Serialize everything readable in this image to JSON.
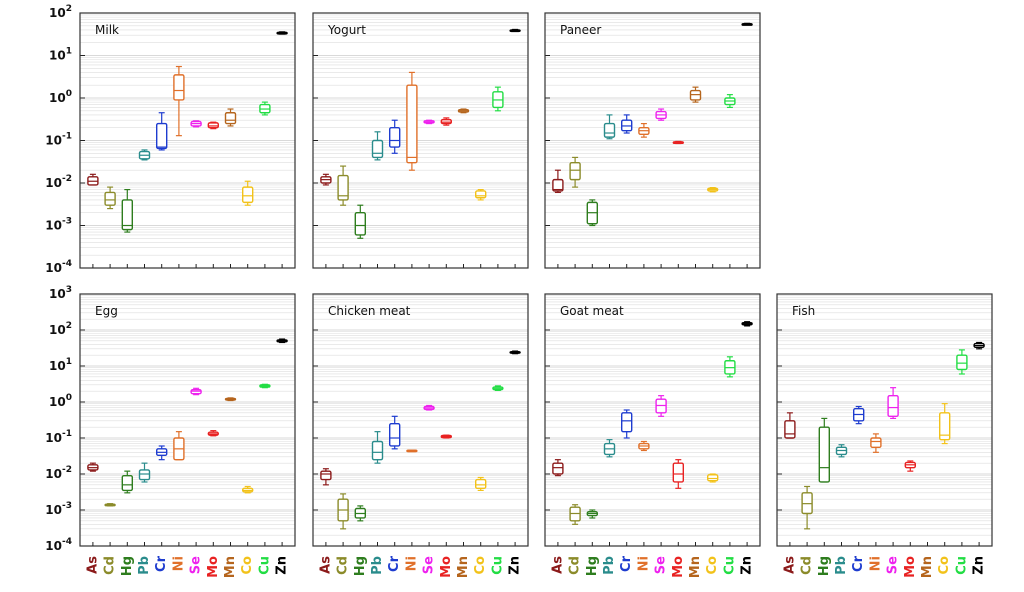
{
  "chart_data": {
    "type": "box",
    "yscale": "log",
    "categories": [
      "As",
      "Cd",
      "Hg",
      "Pb",
      "Cr",
      "Ni",
      "Se",
      "Mo",
      "Mn",
      "Co",
      "Cu",
      "Zn"
    ],
    "colors": {
      "As": "#8b1a1a",
      "Cd": "#8b8b2a",
      "Hg": "#2e7d1e",
      "Pb": "#2a8c8c",
      "Cr": "#1e3ccf",
      "Ni": "#e0702a",
      "Se": "#ee22ee",
      "Mo": "#e82222",
      "Mn": "#b5651d",
      "Co": "#f2c21a",
      "Cu": "#22dd44",
      "Zn": "#000000"
    },
    "ylim_top_row": [
      "10^-4",
      "10^2"
    ],
    "ylim_bottom_row": [
      "10^-4",
      "10^3"
    ],
    "y_tick_labels_top": [
      "10^-4",
      "10^-3",
      "10^-2",
      "10^-1",
      "10^0",
      "10^1",
      "10^2"
    ],
    "y_tick_labels_bottom": [
      "10^-4",
      "10^-3",
      "10^-2",
      "10^-1",
      "10^0",
      "10^1",
      "10^2",
      "10^3"
    ],
    "panels": [
      {
        "title": "Milk",
        "row": 0,
        "col": 0,
        "series": [
          {
            "cat": "As",
            "min": 0.009,
            "q1": 0.009,
            "med": 0.011,
            "q3": 0.014,
            "max": 0.016
          },
          {
            "cat": "Cd",
            "min": 0.0025,
            "q1": 0.003,
            "med": 0.004,
            "q3": 0.006,
            "max": 0.008
          },
          {
            "cat": "Hg",
            "min": 0.0007,
            "q1": 0.0008,
            "med": 0.001,
            "q3": 0.004,
            "max": 0.007
          },
          {
            "cat": "Pb",
            "min": 0.035,
            "q1": 0.037,
            "med": 0.045,
            "q3": 0.055,
            "max": 0.06
          },
          {
            "cat": "Cr",
            "min": 0.06,
            "q1": 0.065,
            "med": 0.07,
            "q3": 0.25,
            "max": 0.45
          },
          {
            "cat": "Ni",
            "min": 0.13,
            "q1": 0.9,
            "med": 1.5,
            "q3": 3.5,
            "max": 5.5
          },
          {
            "cat": "Se",
            "min": 0.21,
            "q1": 0.22,
            "med": 0.25,
            "q3": 0.28,
            "max": 0.29
          },
          {
            "cat": "Mo",
            "min": 0.19,
            "q1": 0.2,
            "med": 0.22,
            "q3": 0.26,
            "max": 0.27
          },
          {
            "cat": "Mn",
            "min": 0.22,
            "q1": 0.25,
            "med": 0.3,
            "q3": 0.45,
            "max": 0.55
          },
          {
            "cat": "Co",
            "min": 0.003,
            "q1": 0.0035,
            "med": 0.005,
            "q3": 0.008,
            "max": 0.011
          },
          {
            "cat": "Cu",
            "min": 0.4,
            "q1": 0.45,
            "med": 0.55,
            "q3": 0.7,
            "max": 0.8
          },
          {
            "cat": "Zn",
            "min": 32,
            "q1": 33,
            "med": 34,
            "q3": 35,
            "max": 36
          }
        ]
      },
      {
        "title": "Yogurt",
        "row": 0,
        "col": 1,
        "series": [
          {
            "cat": "As",
            "min": 0.009,
            "q1": 0.01,
            "med": 0.012,
            "q3": 0.014,
            "max": 0.016
          },
          {
            "cat": "Cd",
            "min": 0.003,
            "q1": 0.004,
            "med": 0.005,
            "q3": 0.015,
            "max": 0.025
          },
          {
            "cat": "Hg",
            "min": 0.0005,
            "q1": 0.0006,
            "med": 0.001,
            "q3": 0.002,
            "max": 0.003
          },
          {
            "cat": "Pb",
            "min": 0.035,
            "q1": 0.04,
            "med": 0.05,
            "q3": 0.1,
            "max": 0.16
          },
          {
            "cat": "Cr",
            "min": 0.05,
            "q1": 0.07,
            "med": 0.1,
            "q3": 0.2,
            "max": 0.3
          },
          {
            "cat": "Ni",
            "min": 0.02,
            "q1": 0.03,
            "med": 0.04,
            "q3": 2.0,
            "max": 4.0
          },
          {
            "cat": "Se",
            "min": 0.25,
            "q1": 0.26,
            "med": 0.27,
            "q3": 0.29,
            "max": 0.3
          },
          {
            "cat": "Mo",
            "min": 0.23,
            "q1": 0.25,
            "med": 0.27,
            "q3": 0.31,
            "max": 0.34
          },
          {
            "cat": "Mn",
            "min": 0.45,
            "q1": 0.47,
            "med": 0.5,
            "q3": 0.53,
            "max": 0.55
          },
          {
            "cat": "Co",
            "min": 0.004,
            "q1": 0.0045,
            "med": 0.005,
            "q3": 0.0065,
            "max": 0.007
          },
          {
            "cat": "Cu",
            "min": 0.5,
            "q1": 0.6,
            "med": 0.9,
            "q3": 1.4,
            "max": 1.8
          },
          {
            "cat": "Zn",
            "min": 37,
            "q1": 38,
            "med": 39,
            "q3": 40,
            "max": 41
          }
        ]
      },
      {
        "title": "Paneer",
        "row": 0,
        "col": 2,
        "series": [
          {
            "cat": "As",
            "min": 0.006,
            "q1": 0.0065,
            "med": 0.007,
            "q3": 0.012,
            "max": 0.02
          },
          {
            "cat": "Cd",
            "min": 0.008,
            "q1": 0.012,
            "med": 0.02,
            "q3": 0.03,
            "max": 0.04
          },
          {
            "cat": "Hg",
            "min": 0.001,
            "q1": 0.0011,
            "med": 0.002,
            "q3": 0.0035,
            "max": 0.004
          },
          {
            "cat": "Pb",
            "min": 0.11,
            "q1": 0.12,
            "med": 0.15,
            "q3": 0.25,
            "max": 0.4
          },
          {
            "cat": "Cr",
            "min": 0.15,
            "q1": 0.17,
            "med": 0.22,
            "q3": 0.3,
            "max": 0.4
          },
          {
            "cat": "Ni",
            "min": 0.12,
            "q1": 0.14,
            "med": 0.17,
            "q3": 0.2,
            "max": 0.25
          },
          {
            "cat": "Se",
            "min": 0.3,
            "q1": 0.33,
            "med": 0.4,
            "q3": 0.48,
            "max": 0.55
          },
          {
            "cat": "Mo",
            "min": 0.085,
            "q1": 0.087,
            "med": 0.09,
            "q3": 0.093,
            "max": 0.095
          },
          {
            "cat": "Mn",
            "min": 0.8,
            "q1": 0.9,
            "med": 1.2,
            "q3": 1.5,
            "max": 1.8
          },
          {
            "cat": "Co",
            "min": 0.0062,
            "q1": 0.0065,
            "med": 0.007,
            "q3": 0.0075,
            "max": 0.0078
          },
          {
            "cat": "Cu",
            "min": 0.6,
            "q1": 0.7,
            "med": 0.85,
            "q3": 1.0,
            "max": 1.2
          },
          {
            "cat": "Zn",
            "min": 53,
            "q1": 54,
            "med": 55,
            "q3": 56,
            "max": 57
          }
        ]
      },
      {
        "title": "Egg",
        "row": 1,
        "col": 0,
        "series": [
          {
            "cat": "As",
            "min": 0.012,
            "q1": 0.013,
            "med": 0.015,
            "q3": 0.018,
            "max": 0.02
          },
          {
            "cat": "Cd",
            "min": 0.0013,
            "q1": 0.00135,
            "med": 0.0014,
            "q3": 0.00145,
            "max": 0.0015
          },
          {
            "cat": "Hg",
            "min": 0.003,
            "q1": 0.0035,
            "med": 0.005,
            "q3": 0.009,
            "max": 0.012
          },
          {
            "cat": "Pb",
            "min": 0.006,
            "q1": 0.007,
            "med": 0.01,
            "q3": 0.013,
            "max": 0.02
          },
          {
            "cat": "Cr",
            "min": 0.025,
            "q1": 0.033,
            "med": 0.04,
            "q3": 0.05,
            "max": 0.06
          },
          {
            "cat": "Ni",
            "min": 0.025,
            "q1": 0.025,
            "med": 0.05,
            "q3": 0.1,
            "max": 0.15
          },
          {
            "cat": "Se",
            "min": 1.6,
            "q1": 1.7,
            "med": 2.0,
            "q3": 2.2,
            "max": 2.4
          },
          {
            "cat": "Mo",
            "min": 0.115,
            "q1": 0.12,
            "med": 0.13,
            "q3": 0.145,
            "max": 0.16
          },
          {
            "cat": "Mn",
            "min": 1.1,
            "q1": 1.15,
            "med": 1.2,
            "q3": 1.25,
            "max": 1.3
          },
          {
            "cat": "Co",
            "min": 0.003,
            "q1": 0.0032,
            "med": 0.0035,
            "q3": 0.004,
            "max": 0.0045
          },
          {
            "cat": "Cu",
            "min": 2.5,
            "q1": 2.6,
            "med": 2.8,
            "q3": 3.0,
            "max": 3.1
          },
          {
            "cat": "Zn",
            "min": 45,
            "q1": 47,
            "med": 50,
            "q3": 53,
            "max": 56
          }
        ]
      },
      {
        "title": "Chicken meat",
        "row": 1,
        "col": 1,
        "series": [
          {
            "cat": "As",
            "min": 0.005,
            "q1": 0.007,
            "med": 0.01,
            "q3": 0.012,
            "max": 0.014
          },
          {
            "cat": "Cd",
            "min": 0.0003,
            "q1": 0.0005,
            "med": 0.001,
            "q3": 0.002,
            "max": 0.0028
          },
          {
            "cat": "Hg",
            "min": 0.0005,
            "q1": 0.0006,
            "med": 0.0008,
            "q3": 0.0011,
            "max": 0.0013
          },
          {
            "cat": "Pb",
            "min": 0.02,
            "q1": 0.025,
            "med": 0.04,
            "q3": 0.08,
            "max": 0.15
          },
          {
            "cat": "Cr",
            "min": 0.05,
            "q1": 0.06,
            "med": 0.1,
            "q3": 0.25,
            "max": 0.4
          },
          {
            "cat": "Ni",
            "min": 0.044,
            "q1": 0.044,
            "med": 0.045,
            "q3": 0.046,
            "max": 0.046
          },
          {
            "cat": "Se",
            "min": 0.6,
            "q1": 0.62,
            "med": 0.68,
            "q3": 0.75,
            "max": 0.8
          },
          {
            "cat": "Mo",
            "min": 0.1,
            "q1": 0.102,
            "med": 0.11,
            "q3": 0.118,
            "max": 0.12
          },
          {
            "cat": "Co",
            "min": 0.0035,
            "q1": 0.004,
            "med": 0.005,
            "q3": 0.007,
            "max": 0.008
          },
          {
            "cat": "Cu",
            "min": 2.1,
            "q1": 2.2,
            "med": 2.4,
            "q3": 2.6,
            "max": 2.8
          },
          {
            "cat": "Zn",
            "min": 22,
            "q1": 23,
            "med": 24,
            "q3": 25,
            "max": 26
          }
        ]
      },
      {
        "title": "Goat meat",
        "row": 1,
        "col": 2,
        "series": [
          {
            "cat": "As",
            "min": 0.009,
            "q1": 0.01,
            "med": 0.015,
            "q3": 0.02,
            "max": 0.025
          },
          {
            "cat": "Cd",
            "min": 0.0004,
            "q1": 0.0005,
            "med": 0.0008,
            "q3": 0.0012,
            "max": 0.0014
          },
          {
            "cat": "Hg",
            "min": 0.0006,
            "q1": 0.0007,
            "med": 0.0008,
            "q3": 0.0009,
            "max": 0.001
          },
          {
            "cat": "Pb",
            "min": 0.03,
            "q1": 0.035,
            "med": 0.05,
            "q3": 0.07,
            "max": 0.09
          },
          {
            "cat": "Cr",
            "min": 0.1,
            "q1": 0.15,
            "med": 0.3,
            "q3": 0.5,
            "max": 0.6
          },
          {
            "cat": "Ni",
            "min": 0.045,
            "q1": 0.05,
            "med": 0.06,
            "q3": 0.07,
            "max": 0.08
          },
          {
            "cat": "Se",
            "min": 0.4,
            "q1": 0.5,
            "med": 0.8,
            "q3": 1.2,
            "max": 1.5
          },
          {
            "cat": "Mo",
            "min": 0.004,
            "q1": 0.006,
            "med": 0.01,
            "q3": 0.02,
            "max": 0.025
          },
          {
            "cat": "Co",
            "min": 0.006,
            "q1": 0.0065,
            "med": 0.0075,
            "q3": 0.0095,
            "max": 0.01
          },
          {
            "cat": "Cu",
            "min": 5,
            "q1": 6,
            "med": 9,
            "q3": 14,
            "max": 18
          },
          {
            "cat": "Zn",
            "min": 130,
            "q1": 140,
            "med": 150,
            "q3": 160,
            "max": 170
          }
        ]
      },
      {
        "title": "Fish",
        "row": 1,
        "col": 3,
        "series": [
          {
            "cat": "As",
            "min": 0.1,
            "q1": 0.1,
            "med": 0.13,
            "q3": 0.3,
            "max": 0.5
          },
          {
            "cat": "Cd",
            "min": 0.0003,
            "q1": 0.0008,
            "med": 0.0015,
            "q3": 0.003,
            "max": 0.0045
          },
          {
            "cat": "Hg",
            "min": 0.006,
            "q1": 0.006,
            "med": 0.015,
            "q3": 0.2,
            "max": 0.35
          },
          {
            "cat": "Pb",
            "min": 0.03,
            "q1": 0.035,
            "med": 0.045,
            "q3": 0.055,
            "max": 0.065
          },
          {
            "cat": "Cr",
            "min": 0.25,
            "q1": 0.3,
            "med": 0.45,
            "q3": 0.65,
            "max": 0.75
          },
          {
            "cat": "Ni",
            "min": 0.04,
            "q1": 0.055,
            "med": 0.08,
            "q3": 0.1,
            "max": 0.13
          },
          {
            "cat": "Se",
            "min": 0.35,
            "q1": 0.4,
            "med": 0.7,
            "q3": 1.5,
            "max": 2.5
          },
          {
            "cat": "Mo",
            "min": 0.012,
            "q1": 0.015,
            "med": 0.018,
            "q3": 0.021,
            "max": 0.023
          },
          {
            "cat": "Co",
            "min": 0.07,
            "q1": 0.09,
            "med": 0.12,
            "q3": 0.5,
            "max": 0.9
          },
          {
            "cat": "Cu",
            "min": 6,
            "q1": 8,
            "med": 12,
            "q3": 20,
            "max": 28
          },
          {
            "cat": "Zn",
            "min": 30,
            "q1": 33,
            "med": 37,
            "q3": 42,
            "max": 45
          }
        ]
      }
    ]
  }
}
